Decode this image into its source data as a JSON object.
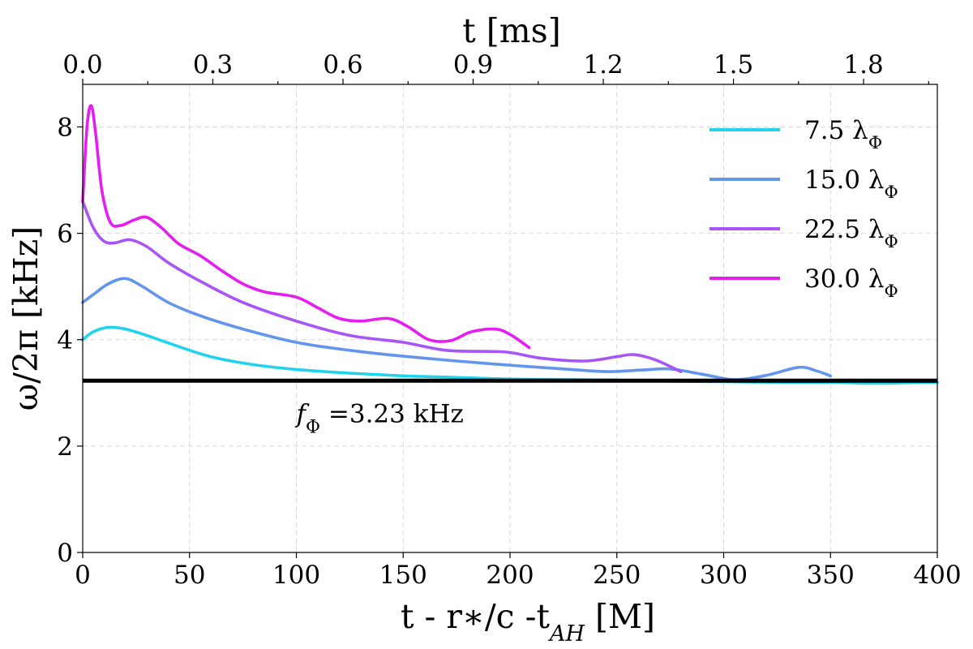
{
  "chart_data": {
    "type": "line",
    "xlabel": "t - r∗/c -t_AH [M]",
    "ylabel": "ω/2π [kHz]",
    "top_xlabel": "t [ms]",
    "xlim": [
      0,
      400
    ],
    "ylim": [
      0,
      8.8
    ],
    "top_xlim": [
      0,
      1.97
    ],
    "x_ticks": [
      0,
      50,
      100,
      150,
      200,
      250,
      300,
      350,
      400
    ],
    "y_ticks": [
      0,
      2,
      4,
      6,
      8
    ],
    "top_ticks": [
      0.0,
      0.3,
      0.6,
      0.9,
      1.2,
      1.5,
      1.8
    ],
    "x_tick_labels": [
      "0",
      "50",
      "100",
      "150",
      "200",
      "250",
      "300",
      "350",
      "400"
    ],
    "y_tick_labels": [
      "0",
      "2",
      "4",
      "6",
      "8"
    ],
    "top_tick_labels": [
      "0.0",
      "0.3",
      "0.6",
      "0.9",
      "1.2",
      "1.5",
      "1.8"
    ],
    "grid": true,
    "legend_position": "top-right",
    "hline": {
      "y": 3.23,
      "label": "f_Φ =3.23 kHz",
      "color": "#000000"
    },
    "series": [
      {
        "name": "7.5 λ_Φ",
        "color": "#22d3ee",
        "x": [
          0,
          5,
          12,
          20,
          30,
          45,
          60,
          80,
          100,
          125,
          150,
          175,
          200,
          225,
          250,
          275,
          300,
          325,
          350,
          370,
          385,
          400
        ],
        "y": [
          4.0,
          4.15,
          4.23,
          4.2,
          4.08,
          3.87,
          3.68,
          3.53,
          3.44,
          3.37,
          3.32,
          3.29,
          3.26,
          3.25,
          3.24,
          3.22,
          3.21,
          3.2,
          3.2,
          3.18,
          3.19,
          3.2
        ]
      },
      {
        "name": "15.0 λ_Φ",
        "color": "#6495ed",
        "x": [
          0,
          5,
          12,
          20,
          28,
          40,
          55,
          75,
          100,
          125,
          150,
          175,
          200,
          225,
          245,
          262,
          275,
          290,
          305,
          320,
          335,
          343,
          350
        ],
        "y": [
          4.7,
          4.85,
          5.05,
          5.15,
          5.0,
          4.7,
          4.45,
          4.2,
          3.95,
          3.8,
          3.69,
          3.6,
          3.52,
          3.45,
          3.4,
          3.43,
          3.45,
          3.35,
          3.25,
          3.33,
          3.48,
          3.42,
          3.32
        ]
      },
      {
        "name": "22.5 λ_Φ",
        "color": "#a855f7",
        "x": [
          0,
          5,
          10,
          15,
          22,
          30,
          40,
          55,
          75,
          100,
          125,
          150,
          170,
          190,
          200,
          215,
          235,
          250,
          258,
          268,
          280
        ],
        "y": [
          6.6,
          6.1,
          5.85,
          5.82,
          5.88,
          5.75,
          5.45,
          5.1,
          4.7,
          4.35,
          4.08,
          3.95,
          3.8,
          3.78,
          3.76,
          3.65,
          3.6,
          3.68,
          3.72,
          3.62,
          3.4
        ]
      },
      {
        "name": "30.0 λ_Φ",
        "color": "#e61cf3",
        "x": [
          0,
          2,
          4,
          6,
          9,
          13,
          18,
          24,
          30,
          37,
          45,
          55,
          65,
          75,
          85,
          100,
          110,
          120,
          130,
          143,
          152,
          162,
          172,
          182,
          193,
          200,
          209
        ],
        "y": [
          6.6,
          8.0,
          8.4,
          7.9,
          6.8,
          6.2,
          6.15,
          6.25,
          6.3,
          6.1,
          5.8,
          5.58,
          5.3,
          5.05,
          4.9,
          4.8,
          4.6,
          4.4,
          4.35,
          4.4,
          4.25,
          4.0,
          3.98,
          4.15,
          4.2,
          4.1,
          3.85
        ]
      }
    ]
  }
}
